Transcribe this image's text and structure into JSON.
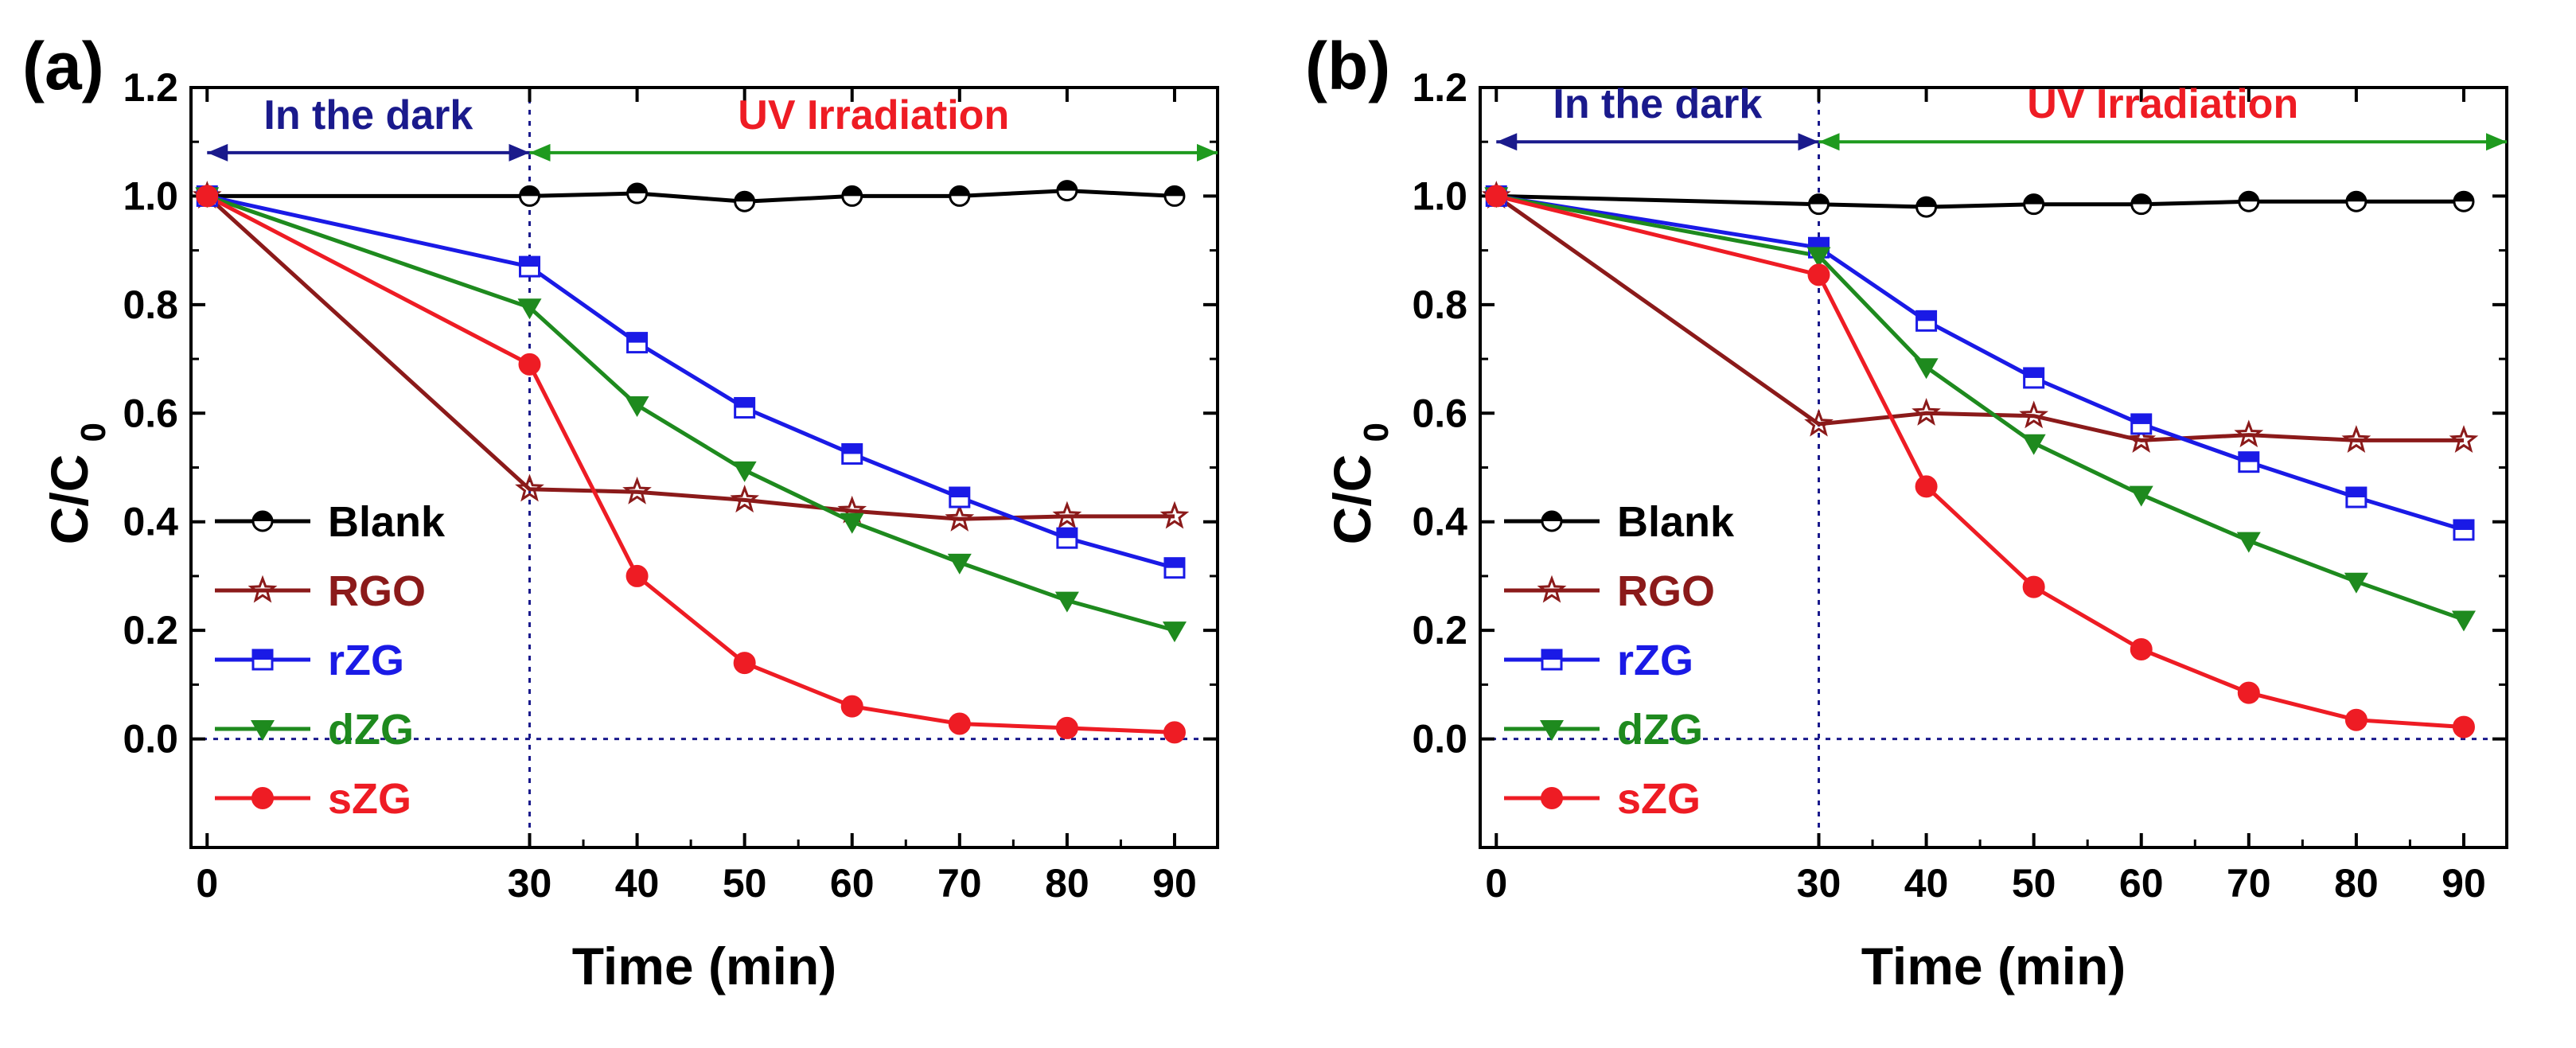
{
  "chart_data": [
    {
      "type": "line",
      "panel_label": "(a)",
      "xlabel": "Time (min)",
      "ylabel_main": "C/C",
      "ylabel_sub": "0",
      "x": [
        0,
        30,
        40,
        50,
        60,
        70,
        80,
        90
      ],
      "xticks": [
        0,
        30,
        40,
        50,
        60,
        70,
        80,
        90
      ],
      "yticks": [
        0.0,
        0.2,
        0.4,
        0.6,
        0.8,
        1.0,
        1.2
      ],
      "ytick_labels": [
        "0.0",
        "0.2",
        "0.4",
        "0.6",
        "0.8",
        "1.0",
        "1.2"
      ],
      "xlim": [
        -1.5,
        94
      ],
      "ylim": [
        -0.2,
        1.2
      ],
      "annotations": {
        "dark_label": "In the dark",
        "uv_label": "UV Irradiation",
        "dark_range": [
          0,
          30
        ],
        "uv_range": [
          30,
          94
        ],
        "arrow_y": 1.08,
        "divider_x": 30,
        "baseline_y": 0.0
      },
      "legend_position": "lower-left",
      "series": [
        {
          "name": "Blank",
          "color": "#000000",
          "marker": "half-circle",
          "values": [
            1.0,
            1.0,
            1.005,
            0.99,
            1.0,
            1.0,
            1.01,
            1.0
          ]
        },
        {
          "name": "RGO",
          "color": "#8b1a1a",
          "marker": "star",
          "values": [
            1.0,
            0.46,
            0.455,
            0.44,
            0.42,
            0.405,
            0.41,
            0.41
          ]
        },
        {
          "name": "rZG",
          "color": "#1a1ae6",
          "marker": "half-square",
          "values": [
            1.0,
            0.87,
            0.73,
            0.61,
            0.525,
            0.445,
            0.37,
            0.315
          ]
        },
        {
          "name": "dZG",
          "color": "#1e8a1e",
          "marker": "triangle-down",
          "values": [
            1.0,
            0.795,
            0.615,
            0.495,
            0.4,
            0.325,
            0.255,
            0.2
          ]
        },
        {
          "name": "sZG",
          "color": "#ee1c24",
          "marker": "circle",
          "values": [
            1.0,
            0.69,
            0.3,
            0.14,
            0.06,
            0.028,
            0.02,
            0.012
          ]
        }
      ]
    },
    {
      "type": "line",
      "panel_label": "(b)",
      "xlabel": "Time (min)",
      "ylabel_main": "C/C",
      "ylabel_sub": "0",
      "x": [
        0,
        30,
        40,
        50,
        60,
        70,
        80,
        90
      ],
      "xticks": [
        0,
        30,
        40,
        50,
        60,
        70,
        80,
        90
      ],
      "yticks": [
        0.0,
        0.2,
        0.4,
        0.6,
        0.8,
        1.0,
        1.2
      ],
      "ytick_labels": [
        "0.0",
        "0.2",
        "0.4",
        "0.6",
        "0.8",
        "1.0",
        "1.2"
      ],
      "xlim": [
        -1.5,
        94
      ],
      "ylim": [
        -0.2,
        1.2
      ],
      "annotations": {
        "dark_label": "In the dark",
        "uv_label": "UV Irradiation",
        "dark_range": [
          0,
          30
        ],
        "uv_range": [
          30,
          94
        ],
        "arrow_y": 1.1,
        "divider_x": 30,
        "baseline_y": 0.0
      },
      "legend_position": "lower-left",
      "series": [
        {
          "name": "Blank",
          "color": "#000000",
          "marker": "half-circle",
          "values": [
            1.0,
            0.985,
            0.98,
            0.985,
            0.985,
            0.99,
            0.99,
            0.99
          ]
        },
        {
          "name": "RGO",
          "color": "#8b1a1a",
          "marker": "star",
          "values": [
            1.0,
            0.58,
            0.6,
            0.595,
            0.55,
            0.56,
            0.55,
            0.55
          ]
        },
        {
          "name": "rZG",
          "color": "#1a1ae6",
          "marker": "half-square",
          "values": [
            1.0,
            0.905,
            0.77,
            0.665,
            0.58,
            0.51,
            0.445,
            0.385
          ]
        },
        {
          "name": "dZG",
          "color": "#1e8a1e",
          "marker": "triangle-down",
          "values": [
            1.0,
            0.89,
            0.685,
            0.545,
            0.45,
            0.365,
            0.29,
            0.22
          ]
        },
        {
          "name": "sZG",
          "color": "#ee1c24",
          "marker": "circle",
          "values": [
            1.0,
            0.855,
            0.465,
            0.28,
            0.165,
            0.085,
            0.035,
            0.022
          ]
        }
      ]
    }
  ],
  "colors": {
    "dark_label": "#1a1a8c",
    "uv_label": "#ee1c24",
    "dark_arrow": "#1a1a8c",
    "uv_arrow": "#1e9a1e",
    "guide_line": "#1a1a8c"
  }
}
